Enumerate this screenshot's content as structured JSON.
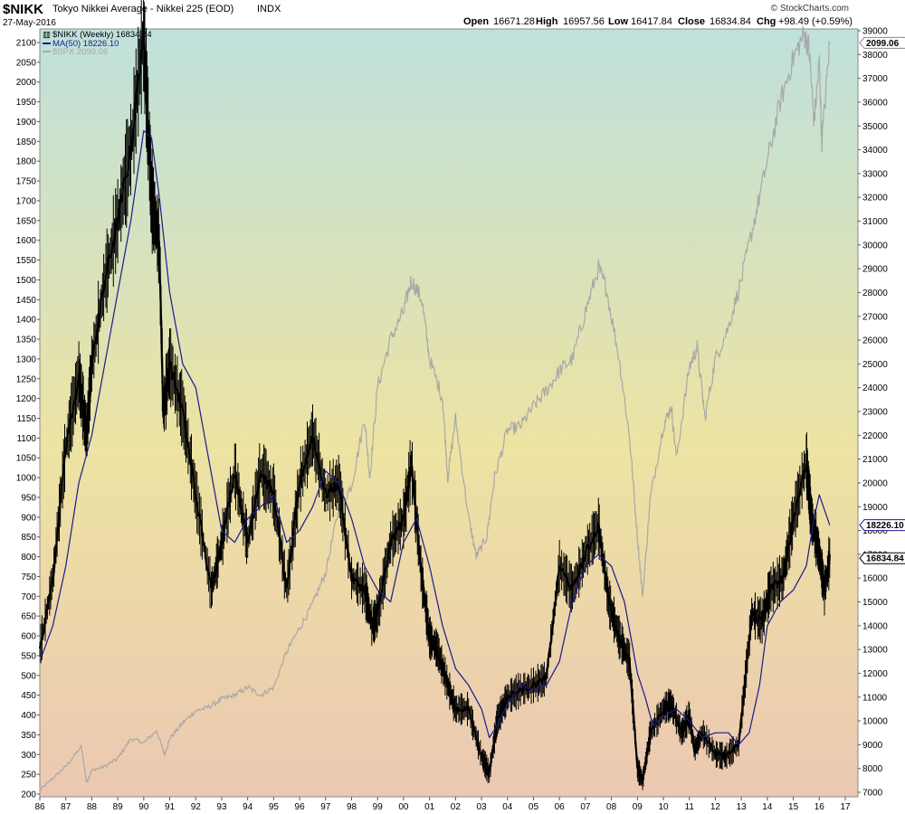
{
  "header": {
    "symbol": "$NIKK",
    "description": "Tokyo Nikkei Average - Nikkei 225 (EOD)",
    "exchange": "INDX",
    "date": "27-May-2016",
    "open_label": "Open",
    "open": "16671.28",
    "high_label": "High",
    "high": "16957.56",
    "low_label": "Low",
    "low": "16417.84",
    "close_label": "Close",
    "close": "16834.84",
    "chg_label": "Chg",
    "chg": "+98.49 (+0.59%)",
    "credit": "© StockCharts.com"
  },
  "legend": {
    "nikk": "$NIKK (Weekly) 16834.84",
    "ma": "MA(50) 18226.10",
    "spx": "$SPX 2099.06"
  },
  "colors": {
    "nikk": "#000000",
    "ma": "#1a1a8c",
    "spx": "#a8a8a8",
    "bg_top": "#bfe1dc",
    "bg_mid": "#ede3a2",
    "bg_bottom": "#ecc8b2"
  },
  "chart_data": {
    "type": "line",
    "title": "$NIKK Tokyo Nikkei Average - Nikkei 225 (EOD)",
    "x_range": [
      1986,
      2017
    ],
    "x_ticks": [
      "86",
      "87",
      "88",
      "89",
      "90",
      "91",
      "92",
      "93",
      "94",
      "95",
      "96",
      "97",
      "98",
      "99",
      "00",
      "01",
      "02",
      "03",
      "04",
      "05",
      "06",
      "07",
      "08",
      "09",
      "10",
      "11",
      "12",
      "13",
      "14",
      "15",
      "16",
      "17"
    ],
    "left_axis": {
      "series": "$SPX",
      "range": [
        200,
        2100
      ],
      "ticks": [
        200,
        250,
        300,
        350,
        400,
        450,
        500,
        550,
        600,
        650,
        700,
        750,
        800,
        850,
        900,
        950,
        1000,
        1050,
        1100,
        1150,
        1200,
        1250,
        1300,
        1350,
        1400,
        1450,
        1500,
        1550,
        1600,
        1650,
        1700,
        1750,
        1800,
        1850,
        1900,
        1950,
        2000,
        2050,
        2100
      ]
    },
    "right_axis": {
      "series": "$NIKK",
      "range": [
        7000,
        39000
      ],
      "ticks": [
        7000,
        8000,
        9000,
        10000,
        11000,
        12000,
        13000,
        14000,
        15000,
        16000,
        17000,
        18000,
        19000,
        20000,
        21000,
        22000,
        23000,
        24000,
        25000,
        26000,
        27000,
        28000,
        29000,
        30000,
        31000,
        32000,
        33000,
        34000,
        35000,
        36000,
        37000,
        38000,
        39000
      ]
    },
    "grid": false,
    "series": [
      {
        "name": "$NIKK (Weekly)",
        "axis": "right",
        "x": [
          1986.0,
          1986.5,
          1987.0,
          1987.5,
          1987.8,
          1988.0,
          1988.5,
          1989.0,
          1989.5,
          1989.99,
          1990.3,
          1990.6,
          1990.75,
          1991.0,
          1991.5,
          1992.0,
          1992.6,
          1993.0,
          1993.5,
          1994.0,
          1994.5,
          1995.0,
          1995.5,
          1996.0,
          1996.5,
          1997.0,
          1997.5,
          1998.0,
          1998.5,
          1998.8,
          1999.0,
          1999.5,
          2000.0,
          2000.3,
          2000.7,
          2001.0,
          2001.3,
          2001.7,
          2002.0,
          2002.5,
          2003.0,
          2003.3,
          2003.6,
          2004.0,
          2004.5,
          2005.0,
          2005.5,
          2006.0,
          2006.5,
          2007.0,
          2007.5,
          2007.9,
          2008.3,
          2008.7,
          2009.0,
          2009.2,
          2009.5,
          2010.0,
          2010.3,
          2010.7,
          2011.0,
          2011.2,
          2011.5,
          2012.0,
          2012.4,
          2012.9,
          2013.4,
          2013.8,
          2014.1,
          2014.6,
          2015.0,
          2015.5,
          2015.7,
          2016.0,
          2016.2,
          2016.4
        ],
        "values": [
          13000,
          16000,
          21500,
          24500,
          22000,
          25000,
          28500,
          31000,
          34000,
          38900,
          32000,
          30000,
          23000,
          25000,
          23000,
          19500,
          15500,
          17500,
          20500,
          17500,
          20500,
          19500,
          15500,
          20000,
          22000,
          19500,
          20000,
          16000,
          15500,
          14000,
          14500,
          17500,
          18500,
          20800,
          16000,
          13500,
          13000,
          11500,
          10500,
          10500,
          8500,
          7800,
          10000,
          11000,
          11300,
          11500,
          11800,
          16500,
          15500,
          17000,
          18200,
          15000,
          13500,
          12500,
          8000,
          7500,
          9500,
          10500,
          10700,
          9500,
          10200,
          8800,
          9500,
          8600,
          8500,
          9000,
          14500,
          14200,
          15500,
          16000,
          18500,
          20900,
          18500,
          17000,
          15500,
          16834.84
        ]
      },
      {
        "name": "MA(50)",
        "axis": "right",
        "x": [
          1986.0,
          1986.5,
          1987.0,
          1987.5,
          1988.0,
          1988.5,
          1989.0,
          1989.5,
          1990.0,
          1990.3,
          1990.6,
          1991.0,
          1991.5,
          1992.0,
          1992.5,
          1993.0,
          1993.5,
          1994.0,
          1994.5,
          1995.0,
          1995.5,
          1996.0,
          1996.5,
          1997.0,
          1997.5,
          1998.0,
          1998.5,
          1999.0,
          1999.5,
          2000.0,
          2000.5,
          2001.0,
          2001.5,
          2002.0,
          2002.5,
          2003.0,
          2003.3,
          2003.6,
          2004.0,
          2004.5,
          2005.0,
          2005.5,
          2006.0,
          2006.5,
          2007.0,
          2007.5,
          2008.0,
          2008.5,
          2009.0,
          2009.3,
          2009.6,
          2010.0,
          2010.5,
          2011.0,
          2011.5,
          2012.0,
          2012.5,
          2012.9,
          2013.3,
          2013.7,
          2014.0,
          2014.5,
          2015.0,
          2015.5,
          2015.8,
          2016.0,
          2016.4
        ],
        "values": [
          12500,
          14000,
          16500,
          20000,
          22000,
          25000,
          28000,
          31000,
          34800,
          34500,
          32000,
          28000,
          25000,
          24000,
          21000,
          18000,
          17500,
          18500,
          19000,
          19500,
          17500,
          18000,
          19000,
          20500,
          20000,
          18500,
          16500,
          15500,
          15000,
          17500,
          18500,
          16500,
          14000,
          12200,
          11500,
          10500,
          9300,
          9800,
          10700,
          11500,
          11300,
          11500,
          12500,
          15000,
          16500,
          17000,
          16500,
          15000,
          12000,
          11000,
          9800,
          10200,
          10500,
          10000,
          9300,
          9500,
          9500,
          9000,
          9500,
          11500,
          14000,
          15000,
          15500,
          16500,
          18500,
          19500,
          18226.1
        ]
      },
      {
        "name": "$SPX",
        "axis": "left",
        "x": [
          1986.0,
          1986.5,
          1987.0,
          1987.6,
          1987.8,
          1988.0,
          1988.5,
          1989.0,
          1989.5,
          1990.0,
          1990.5,
          1990.8,
          1991.0,
          1991.5,
          1992.0,
          1992.5,
          1993.0,
          1993.5,
          1994.0,
          1994.5,
          1995.0,
          1995.5,
          1996.0,
          1996.5,
          1997.0,
          1997.5,
          1998.0,
          1998.5,
          1998.7,
          1999.0,
          1999.5,
          2000.0,
          2000.3,
          2000.7,
          2001.0,
          2001.5,
          2001.7,
          2002.0,
          2002.5,
          2002.8,
          2003.2,
          2003.5,
          2004.0,
          2004.5,
          2005.0,
          2005.5,
          2006.0,
          2006.5,
          2007.0,
          2007.5,
          2007.8,
          2008.3,
          2008.7,
          2009.0,
          2009.2,
          2009.5,
          2010.0,
          2010.3,
          2010.5,
          2011.0,
          2011.3,
          2011.6,
          2012.0,
          2012.5,
          2013.0,
          2013.5,
          2014.0,
          2014.5,
          2015.0,
          2015.4,
          2015.6,
          2015.8,
          2016.0,
          2016.1,
          2016.4
        ],
        "values": [
          210,
          240,
          270,
          320,
          230,
          260,
          270,
          290,
          340,
          330,
          360,
          300,
          340,
          380,
          410,
          420,
          440,
          450,
          470,
          450,
          470,
          560,
          620,
          680,
          760,
          920,
          980,
          1150,
          1000,
          1230,
          1350,
          1420,
          1500,
          1450,
          1300,
          1200,
          1000,
          1150,
          900,
          800,
          850,
          1000,
          1120,
          1130,
          1180,
          1220,
          1270,
          1300,
          1420,
          1530,
          1480,
          1300,
          1100,
          850,
          700,
          950,
          1130,
          1180,
          1050,
          1280,
          1330,
          1150,
          1300,
          1380,
          1500,
          1650,
          1800,
          1950,
          2060,
          2120,
          2090,
          1900,
          2050,
          1850,
          2099.06
        ]
      }
    ]
  }
}
